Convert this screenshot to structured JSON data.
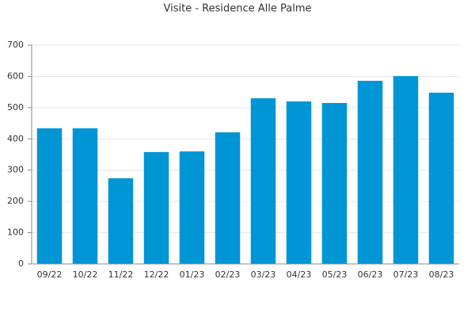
{
  "chart_data": {
    "type": "bar",
    "title": "Visite - Residence Alle Palme",
    "categories": [
      "09/22",
      "10/22",
      "11/22",
      "12/22",
      "01/23",
      "02/23",
      "03/23",
      "04/23",
      "05/23",
      "06/23",
      "07/23",
      "08/23"
    ],
    "values": [
      434,
      434,
      274,
      358,
      360,
      421,
      530,
      520,
      515,
      586,
      601,
      548
    ],
    "color": "#0095d5",
    "ylim": [
      0,
      700
    ],
    "yticks": [
      0,
      100,
      200,
      300,
      400,
      500,
      600,
      700
    ],
    "grid": true
  }
}
